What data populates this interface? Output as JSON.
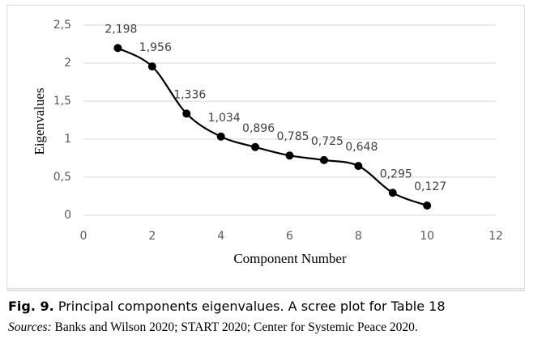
{
  "chart_data": {
    "type": "line",
    "x_label": "Component Number",
    "y_label": "Eigenvalues",
    "x": [
      1,
      2,
      3,
      4,
      5,
      6,
      7,
      8,
      9,
      10
    ],
    "series": [
      {
        "color": "#000000",
        "values": [
          2.198,
          1.956,
          1.336,
          1.034,
          0.896,
          0.785,
          0.725,
          0.648,
          0.295,
          0.127
        ],
        "value_labels": [
          "2,198",
          "1,956",
          "1,336",
          "1,034",
          "0,896",
          "0,785",
          "0,725",
          "0,648",
          "0,295",
          "0,127"
        ]
      }
    ],
    "xlim": [
      0,
      12
    ],
    "xticks": [
      0,
      2,
      4,
      6,
      8,
      10,
      12
    ],
    "ylim": [
      0,
      2.5
    ],
    "yticks": [
      0,
      {
        "value": 0.5,
        "label": "0,5"
      },
      1,
      {
        "value": 1.5,
        "label": "1,5"
      },
      2,
      {
        "value": 2.5,
        "label": "2,5"
      }
    ],
    "grid": true,
    "smooth": true
  },
  "caption": {
    "label": "Fig. 9.",
    "text": "Principal components eigenvalues. A scree plot for Table 18"
  },
  "sources": {
    "label": "Sources:",
    "text": "Banks and Wilson 2020; START 2020; Center for Systemic Peace 2020."
  }
}
